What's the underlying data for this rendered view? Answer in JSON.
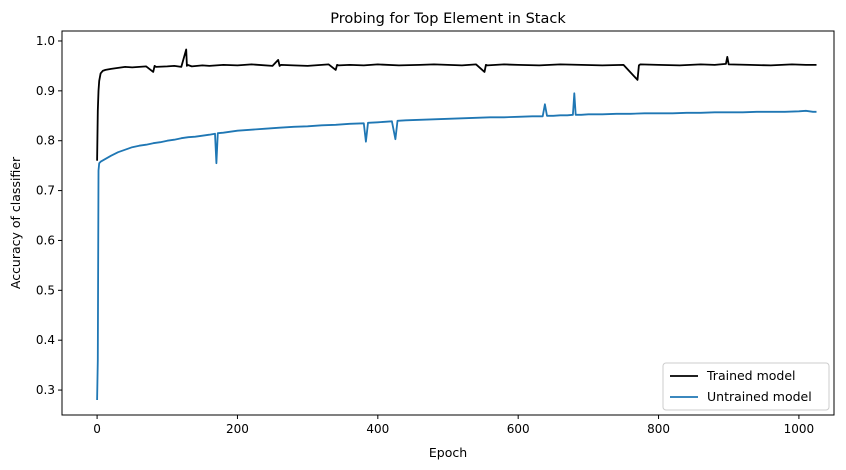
{
  "chart_data": {
    "type": "line",
    "title": "Probing for Top Element in Stack",
    "xlabel": "Epoch",
    "ylabel": "Accuracy of classifier",
    "xlim": [
      -50,
      1050
    ],
    "ylim": [
      0.25,
      1.02
    ],
    "xticks": [
      0,
      200,
      400,
      600,
      800,
      1000
    ],
    "xtick_labels": [
      "0",
      "200",
      "400",
      "600",
      "800",
      "1000"
    ],
    "yticks": [
      0.3,
      0.4,
      0.5,
      0.6,
      0.7,
      0.8,
      0.9,
      1.0
    ],
    "ytick_labels": [
      "0.3",
      "0.4",
      "0.5",
      "0.6",
      "0.7",
      "0.8",
      "0.9",
      "1.0"
    ],
    "grid": false,
    "legend_position": "lower-right",
    "series": [
      {
        "name": "Trained model",
        "color": "#000000",
        "x": [
          0,
          1,
          2,
          3,
          5,
          8,
          12,
          20,
          30,
          40,
          50,
          60,
          70,
          80,
          82,
          84,
          100,
          110,
          120,
          127,
          128,
          129,
          135,
          150,
          160,
          180,
          200,
          220,
          250,
          258,
          260,
          262,
          280,
          300,
          330,
          340,
          342,
          344,
          360,
          380,
          400,
          430,
          460,
          480,
          500,
          520,
          540,
          552,
          554,
          556,
          580,
          600,
          630,
          660,
          690,
          720,
          750,
          770,
          772,
          774,
          800,
          830,
          860,
          880,
          896,
          898,
          900,
          930,
          960,
          990,
          1010,
          1025
        ],
        "y": [
          0.76,
          0.86,
          0.9,
          0.92,
          0.935,
          0.94,
          0.942,
          0.944,
          0.946,
          0.948,
          0.947,
          0.948,
          0.949,
          0.938,
          0.95,
          0.948,
          0.949,
          0.95,
          0.948,
          0.983,
          0.95,
          0.952,
          0.949,
          0.951,
          0.95,
          0.952,
          0.951,
          0.953,
          0.95,
          0.962,
          0.95,
          0.952,
          0.951,
          0.95,
          0.953,
          0.942,
          0.952,
          0.951,
          0.952,
          0.951,
          0.953,
          0.951,
          0.952,
          0.953,
          0.952,
          0.951,
          0.953,
          0.938,
          0.952,
          0.951,
          0.953,
          0.952,
          0.951,
          0.953,
          0.952,
          0.951,
          0.952,
          0.922,
          0.951,
          0.953,
          0.952,
          0.951,
          0.953,
          0.952,
          0.954,
          0.968,
          0.953,
          0.952,
          0.951,
          0.953,
          0.952,
          0.952
        ]
      },
      {
        "name": "Untrained model",
        "color": "#1f77b4",
        "x": [
          0,
          1,
          2,
          3,
          5,
          10,
          20,
          30,
          40,
          50,
          60,
          70,
          80,
          90,
          100,
          110,
          120,
          130,
          140,
          150,
          160,
          168,
          170,
          172,
          180,
          190,
          200,
          210,
          220,
          240,
          260,
          280,
          300,
          320,
          340,
          360,
          380,
          383,
          386,
          400,
          410,
          420,
          425,
          428,
          440,
          460,
          480,
          500,
          520,
          540,
          560,
          580,
          600,
          620,
          635,
          638,
          641,
          650,
          660,
          670,
          678,
          680,
          682,
          690,
          700,
          720,
          740,
          760,
          780,
          800,
          820,
          840,
          860,
          880,
          900,
          920,
          940,
          960,
          980,
          1000,
          1010,
          1020,
          1025
        ],
        "y": [
          0.28,
          0.36,
          0.74,
          0.755,
          0.758,
          0.762,
          0.77,
          0.777,
          0.782,
          0.787,
          0.79,
          0.792,
          0.795,
          0.797,
          0.8,
          0.802,
          0.805,
          0.807,
          0.808,
          0.81,
          0.812,
          0.814,
          0.755,
          0.815,
          0.816,
          0.818,
          0.82,
          0.821,
          0.822,
          0.824,
          0.826,
          0.828,
          0.829,
          0.831,
          0.832,
          0.834,
          0.835,
          0.798,
          0.836,
          0.837,
          0.838,
          0.839,
          0.803,
          0.84,
          0.841,
          0.842,
          0.843,
          0.844,
          0.845,
          0.846,
          0.847,
          0.847,
          0.848,
          0.849,
          0.849,
          0.873,
          0.85,
          0.85,
          0.851,
          0.851,
          0.852,
          0.895,
          0.852,
          0.852,
          0.853,
          0.853,
          0.854,
          0.854,
          0.855,
          0.855,
          0.855,
          0.856,
          0.856,
          0.857,
          0.857,
          0.857,
          0.858,
          0.858,
          0.858,
          0.859,
          0.86,
          0.858,
          0.858
        ]
      }
    ]
  }
}
